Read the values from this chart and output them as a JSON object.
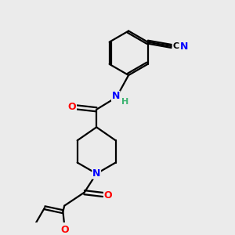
{
  "background_color": "#ebebeb",
  "bond_color": "#000000",
  "bond_width": 1.6,
  "atom_colors": {
    "C": "#000000",
    "N": "#0000ff",
    "O": "#ff0000",
    "H": "#3cb371"
  },
  "figsize": [
    3.0,
    3.0
  ],
  "dpi": 100,
  "xlim": [
    0,
    10
  ],
  "ylim": [
    0,
    10
  ]
}
